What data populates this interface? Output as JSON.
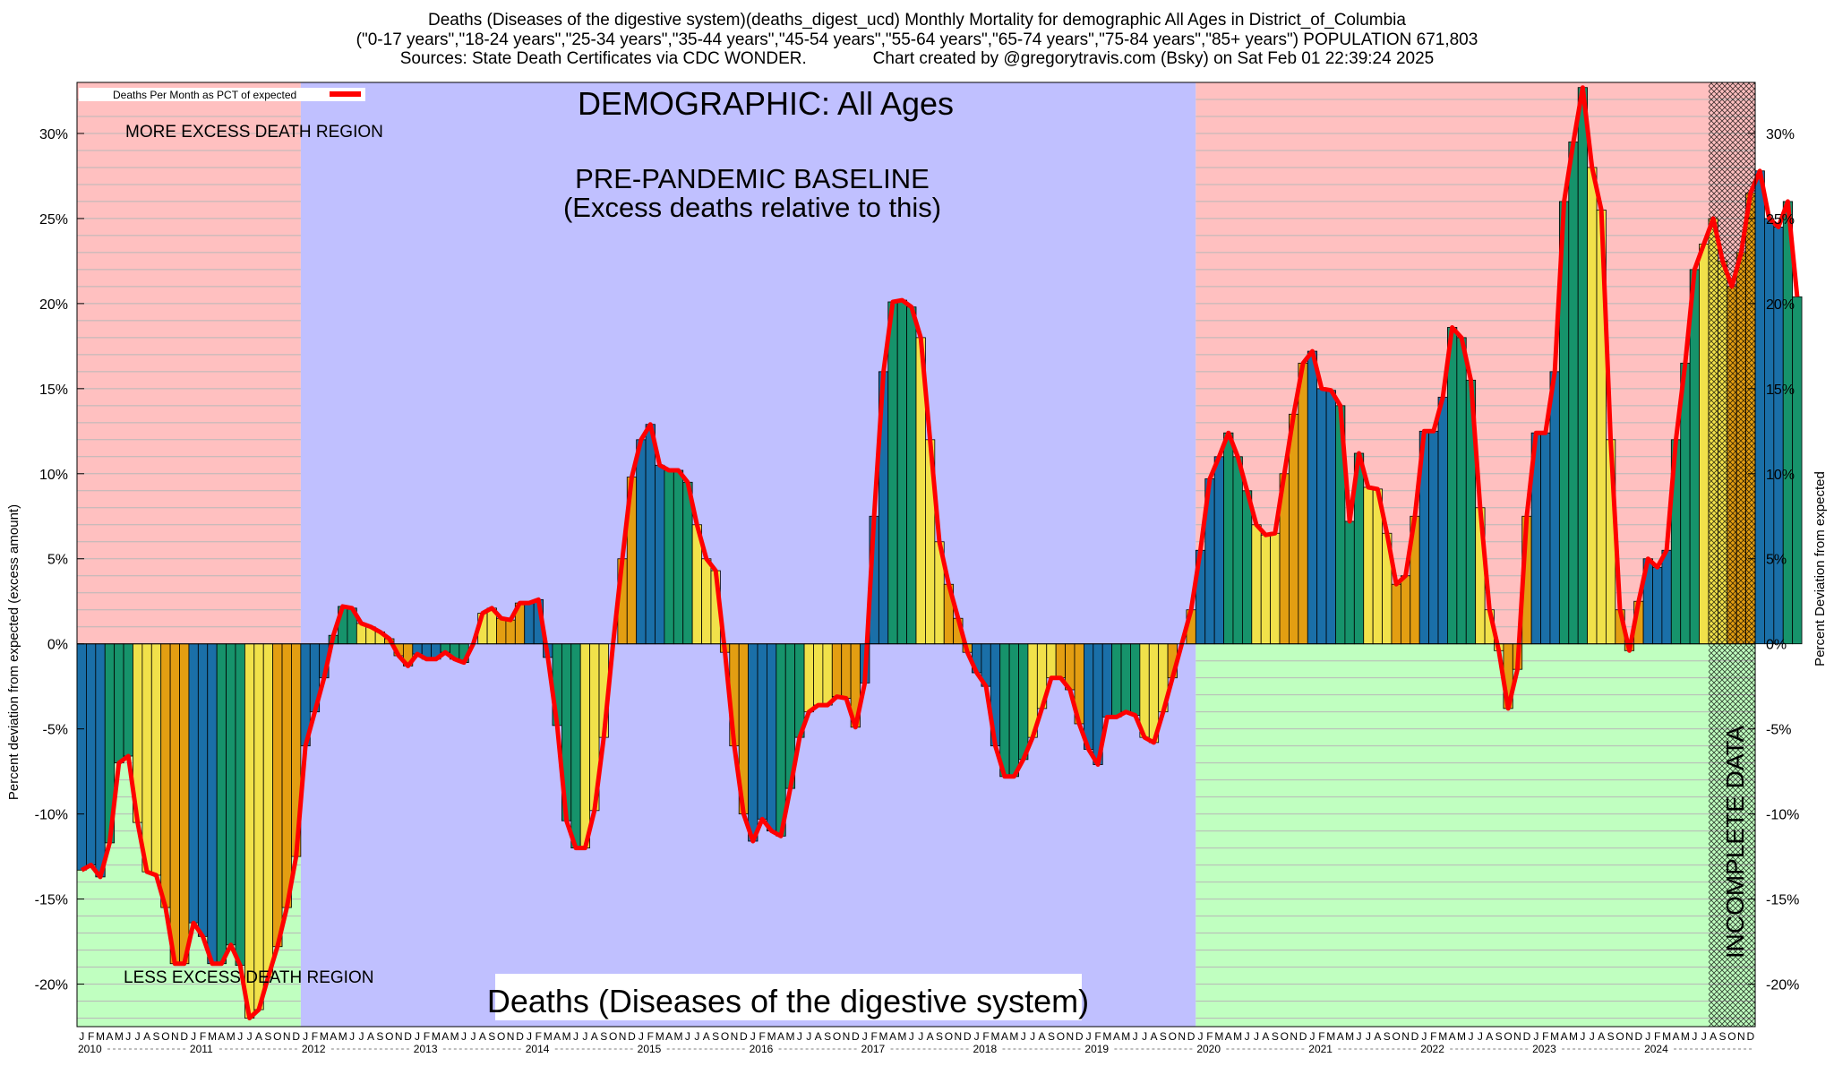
{
  "header": {
    "line1": "Deaths (Diseases of the digestive system)(deaths_digest_ucd) Monthly Mortality for demographic All Ages in District_of_Columbia",
    "line2": "(\"0-17 years\",\"18-24 years\",\"25-34 years\",\"35-44 years\",\"45-54 years\",\"55-64 years\",\"65-74 years\",\"75-84 years\",\"85+ years\") POPULATION 671,803",
    "line3": "Sources: State Death Certificates via CDC WONDER.              Chart created by @gregorytravis.com (Bsky) on Sat Feb 01 22:39:24 2025"
  },
  "chart_data": {
    "type": "bar",
    "title": "DEMOGRAPHIC: All Ages",
    "subtitle": "Deaths (Diseases of the digestive system)",
    "ylabel_left": "Percent deviation from expected (excess amount)",
    "ylabel_right": "Percent Deviation from expected",
    "ylim": [
      -22.5,
      33.0
    ],
    "yticks": [
      30,
      25,
      20,
      15,
      10,
      5,
      0,
      -5,
      -10,
      -15,
      -20
    ],
    "ytick_labels": [
      "30%",
      "25%",
      "20%",
      "15%",
      "10%",
      "5%",
      "0%",
      "-5%",
      "-10%",
      "-15%",
      "-20%"
    ],
    "legend": {
      "label": "Deaths Per Month as PCT of expected",
      "position": "top-left"
    },
    "annotations": {
      "more_excess": "MORE EXCESS DEATH REGION",
      "less_excess": "LESS EXCESS DEATH REGION",
      "baseline_title": "PRE-PANDEMIC BASELINE",
      "baseline_sub": "(Excess deaths relative to this)",
      "incomplete": "INCOMPLETE DATA"
    },
    "regions": {
      "pre_baseline_end_month": 24,
      "baseline_end_month": 120,
      "incomplete_start_month": 175
    },
    "month_letters": [
      "J",
      "F",
      "M",
      "A",
      "M",
      "J",
      "J",
      "A",
      "S",
      "O",
      "N",
      "D"
    ],
    "years": [
      "2010",
      "2011",
      "2012",
      "2013",
      "2014",
      "2015",
      "2016",
      "2017",
      "2018",
      "2019",
      "2020",
      "2021",
      "2022",
      "2023",
      "2024"
    ],
    "start_year": 2010,
    "series": [
      {
        "name": "Deaths Per Month as PCT of expected",
        "values": [
          -13.3,
          -13.0,
          -13.7,
          -11.7,
          -7.0,
          -6.6,
          -10.5,
          -13.4,
          -13.6,
          -15.5,
          -18.8,
          -18.8,
          -16.4,
          -17.2,
          -18.8,
          -18.8,
          -17.7,
          -18.9,
          -22.0,
          -21.5,
          -19.6,
          -17.8,
          -15.5,
          -12.5,
          -6.0,
          -4.0,
          -2.0,
          0.5,
          2.2,
          2.1,
          1.2,
          1.0,
          0.7,
          0.3,
          -0.7,
          -1.3,
          -0.6,
          -0.9,
          -0.9,
          -0.5,
          -0.9,
          -1.1,
          0.0,
          1.8,
          2.1,
          1.5,
          1.4,
          2.4,
          2.4,
          2.6,
          -0.8,
          -4.8,
          -10.4,
          -12.0,
          -12.0,
          -9.8,
          -5.5,
          0.0,
          5.0,
          9.8,
          12.0,
          12.9,
          10.5,
          10.2,
          10.2,
          9.5,
          7.0,
          5.0,
          4.3,
          -0.5,
          -6.0,
          -10.0,
          -11.6,
          -10.3,
          -11.0,
          -11.3,
          -8.5,
          -5.5,
          -4.0,
          -3.6,
          -3.6,
          -3.1,
          -3.2,
          -4.9,
          -2.3,
          7.5,
          16.0,
          20.1,
          20.2,
          19.8,
          18.0,
          12.0,
          6.0,
          3.5,
          1.5,
          -0.5,
          -1.7,
          -2.5,
          -6.0,
          -7.8,
          -7.8,
          -6.8,
          -5.5,
          -3.8,
          -2.0,
          -2.0,
          -2.7,
          -4.7,
          -6.2,
          -7.1,
          -4.3,
          -4.3,
          -4.0,
          -4.2,
          -5.5,
          -5.8,
          -4.0,
          -2.0,
          0.0,
          2.0,
          5.5,
          9.7,
          11.0,
          12.4,
          11.0,
          9.0,
          7.0,
          6.4,
          6.5,
          10.0,
          13.5,
          16.5,
          17.2,
          15.0,
          14.9,
          14.0,
          7.2,
          11.2,
          9.2,
          9.1,
          6.5,
          3.5,
          4.0,
          7.5,
          12.5,
          12.5,
          14.5,
          18.6,
          18.0,
          15.5,
          8.0,
          2.0,
          -0.4,
          -3.8,
          -1.5,
          7.5,
          12.4,
          12.4,
          16.0,
          26.0,
          29.5,
          32.7,
          28.0,
          25.5,
          12.0,
          2.0,
          -0.4,
          2.5,
          5.0,
          4.5,
          5.5,
          12.0,
          16.5,
          22.0,
          23.5,
          25.0,
          22.5,
          21.0,
          23.0,
          26.5,
          27.8,
          25.0,
          24.5,
          26.0,
          20.4
        ]
      }
    ]
  }
}
